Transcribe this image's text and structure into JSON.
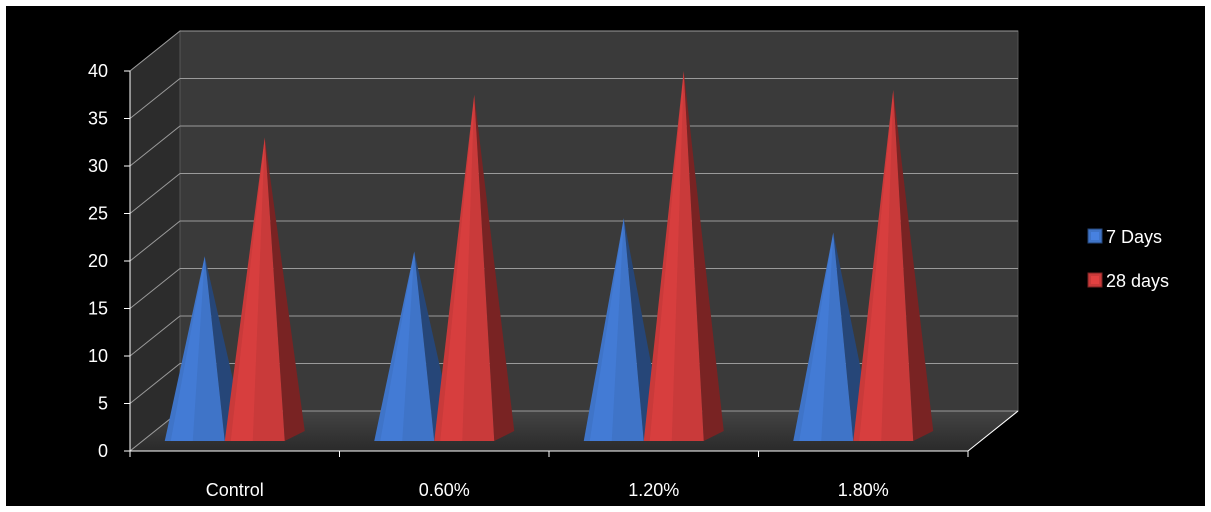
{
  "chart_data": {
    "type": "bar",
    "subtype": "3d-pyramid",
    "categories": [
      "Control",
      "0.60%",
      "1.20%",
      "1.80%"
    ],
    "series": [
      {
        "name": "7 Days",
        "values": [
          20.5,
          21.0,
          24.5,
          23.0
        ],
        "color": "#3f74c8"
      },
      {
        "name": "28 days",
        "values": [
          33.0,
          37.5,
          40.0,
          38.0
        ],
        "color": "#c93a3a"
      }
    ],
    "yticks": [
      "0",
      "5",
      "10",
      "15",
      "20",
      "25",
      "30",
      "35",
      "40"
    ],
    "ylim": [
      0,
      40
    ],
    "grid": true,
    "legend_position": "right",
    "background": "#000000",
    "wall_color": "#3a3a3a",
    "floor_color": "#2a2a2a",
    "text_color": "#ffffff"
  }
}
